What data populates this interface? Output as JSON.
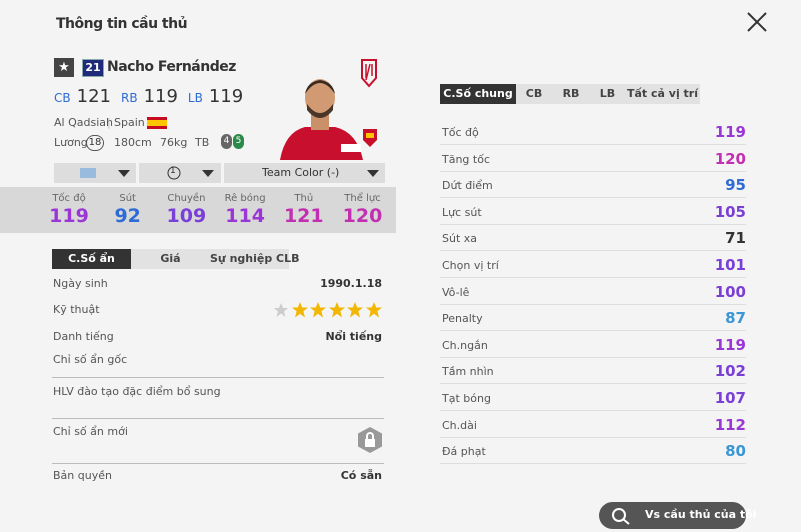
{
  "header": {
    "title": "Thông tin cầu thủ"
  },
  "player": {
    "season": "21",
    "name": "Nacho Fernández",
    "positions": [
      {
        "pos": "CB",
        "rating": 121
      },
      {
        "pos": "RB",
        "rating": 119
      },
      {
        "pos": "LB",
        "rating": 119
      }
    ],
    "club": "Al Qadsiah",
    "nation": "Spain",
    "salary_label": "Lương",
    "salary": 18,
    "height": "180cm",
    "weight": "76kg",
    "body_type": "TB",
    "weak_foot": 4,
    "skill": 5
  },
  "selectors": {
    "level": "1",
    "team_color": "Team Color (-)"
  },
  "summary": [
    {
      "label": "Tốc độ",
      "value": 119,
      "color": "#9a35d6"
    },
    {
      "label": "Sút",
      "value": 92,
      "color": "#2e6bd6"
    },
    {
      "label": "Chuyền",
      "value": 109,
      "color": "#7a3fd6"
    },
    {
      "label": "Rê bóng",
      "value": 114,
      "color": "#9a35d6"
    },
    {
      "label": "Thủ",
      "value": 121,
      "color": "#c22fb0"
    },
    {
      "label": "Thể lực",
      "value": 120,
      "color": "#c22fb0"
    }
  ],
  "left_tabs": [
    "C.Số ẩn",
    "Giá",
    "Sự nghiệp CLB"
  ],
  "hidden_stats": {
    "rows": [
      {
        "label": "Ngày sinh",
        "value": "1990.1.18"
      },
      {
        "label": "Kỹ thuật",
        "stars": 5
      },
      {
        "label": "Danh tiếng",
        "value": "Nổi tiếng"
      },
      {
        "label": "Chỉ số ẩn gốc"
      },
      {
        "label": "HLV đào tạo đặc điểm bổ sung"
      },
      {
        "label": "Chỉ số ẩn mới"
      },
      {
        "label": "Bản quyền",
        "value": "Có sẵn"
      }
    ]
  },
  "right_tabs": [
    "C.Số chung",
    "CB",
    "RB",
    "LB",
    "Tất cả vị trí"
  ],
  "stats": [
    {
      "label": "Tốc độ",
      "value": 119,
      "color": "#9a35d6"
    },
    {
      "label": "Tăng tốc",
      "value": 120,
      "color": "#c22fb0"
    },
    {
      "label": "Dứt điểm",
      "value": 95,
      "color": "#2e6bd6"
    },
    {
      "label": "Lực sút",
      "value": 105,
      "color": "#7a3fd6"
    },
    {
      "label": "Sút xa",
      "value": 71,
      "color": "#333333"
    },
    {
      "label": "Chọn vị trí",
      "value": 101,
      "color": "#7a3fd6"
    },
    {
      "label": "Vô-lê",
      "value": 100,
      "color": "#7a3fd6"
    },
    {
      "label": "Penalty",
      "value": 87,
      "color": "#3a96d4"
    },
    {
      "label": "Ch.ngắn",
      "value": 119,
      "color": "#9a35d6"
    },
    {
      "label": "Tầm nhìn",
      "value": 102,
      "color": "#7a3fd6"
    },
    {
      "label": "Tạt bóng",
      "value": 107,
      "color": "#7a3fd6"
    },
    {
      "label": "Ch.dài",
      "value": 112,
      "color": "#9a35d6"
    },
    {
      "label": "Đá phạt",
      "value": 80,
      "color": "#3a96d4"
    }
  ],
  "button": "Vs cầu thủ của tôi"
}
